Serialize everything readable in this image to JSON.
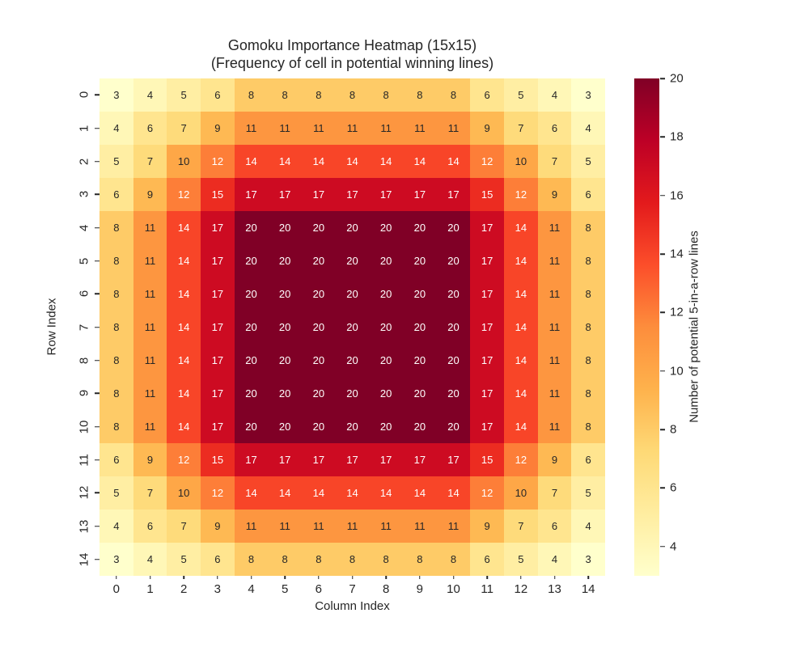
{
  "figure": {
    "background": "#ffffff",
    "text_color": "#262626"
  },
  "chart_data": {
    "type": "heatmap",
    "title": "Gomoku Importance Heatmap (15x15)",
    "subtitle": "(Frequency of cell in potential winning lines)",
    "xlabel": "Column Index",
    "ylabel": "Row Index",
    "x_tick_labels": [
      "0",
      "1",
      "2",
      "3",
      "4",
      "5",
      "6",
      "7",
      "8",
      "9",
      "10",
      "11",
      "12",
      "13",
      "14"
    ],
    "y_tick_labels": [
      "0",
      "1",
      "2",
      "3",
      "4",
      "5",
      "6",
      "7",
      "8",
      "9",
      "10",
      "11",
      "12",
      "13",
      "14"
    ],
    "matrix": [
      [
        3,
        4,
        5,
        6,
        8,
        8,
        8,
        8,
        8,
        8,
        8,
        6,
        5,
        4,
        3
      ],
      [
        4,
        6,
        7,
        9,
        11,
        11,
        11,
        11,
        11,
        11,
        11,
        9,
        7,
        6,
        4
      ],
      [
        5,
        7,
        10,
        12,
        14,
        14,
        14,
        14,
        14,
        14,
        14,
        12,
        10,
        7,
        5
      ],
      [
        6,
        9,
        12,
        15,
        17,
        17,
        17,
        17,
        17,
        17,
        17,
        15,
        12,
        9,
        6
      ],
      [
        8,
        11,
        14,
        17,
        20,
        20,
        20,
        20,
        20,
        20,
        20,
        17,
        14,
        11,
        8
      ],
      [
        8,
        11,
        14,
        17,
        20,
        20,
        20,
        20,
        20,
        20,
        20,
        17,
        14,
        11,
        8
      ],
      [
        8,
        11,
        14,
        17,
        20,
        20,
        20,
        20,
        20,
        20,
        20,
        17,
        14,
        11,
        8
      ],
      [
        8,
        11,
        14,
        17,
        20,
        20,
        20,
        20,
        20,
        20,
        20,
        17,
        14,
        11,
        8
      ],
      [
        8,
        11,
        14,
        17,
        20,
        20,
        20,
        20,
        20,
        20,
        20,
        17,
        14,
        11,
        8
      ],
      [
        8,
        11,
        14,
        17,
        20,
        20,
        20,
        20,
        20,
        20,
        20,
        17,
        14,
        11,
        8
      ],
      [
        8,
        11,
        14,
        17,
        20,
        20,
        20,
        20,
        20,
        20,
        20,
        17,
        14,
        11,
        8
      ],
      [
        6,
        9,
        12,
        15,
        17,
        17,
        17,
        17,
        17,
        17,
        17,
        15,
        12,
        9,
        6
      ],
      [
        5,
        7,
        10,
        12,
        14,
        14,
        14,
        14,
        14,
        14,
        14,
        12,
        10,
        7,
        5
      ],
      [
        4,
        6,
        7,
        9,
        11,
        11,
        11,
        11,
        11,
        11,
        11,
        9,
        7,
        6,
        4
      ],
      [
        3,
        4,
        5,
        6,
        8,
        8,
        8,
        8,
        8,
        8,
        8,
        6,
        5,
        4,
        3
      ]
    ],
    "vmin": 3,
    "vmax": 20,
    "colormap": "YlOrRd",
    "colormap_stops": [
      "#ffffcc",
      "#ffeda0",
      "#fed976",
      "#feb24c",
      "#fd8d3c",
      "#fc4e2a",
      "#e31a1c",
      "#bd0026",
      "#800026"
    ],
    "annotation_dark_text": "#262626",
    "annotation_light_text": "#ffffff",
    "annotations": true,
    "grid": false,
    "legend": false,
    "colorbar": {
      "orientation": "vertical",
      "label": "Number of potential 5-in-a-row lines",
      "ticks": [
        4,
        6,
        8,
        10,
        12,
        14,
        16,
        18,
        20
      ]
    }
  }
}
